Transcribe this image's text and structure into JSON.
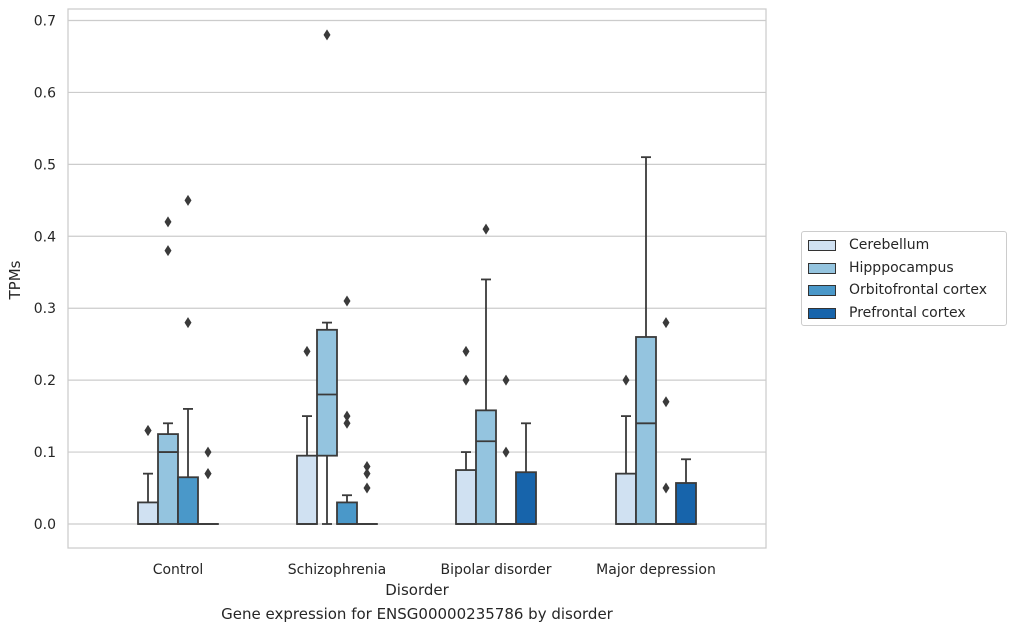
{
  "chart_data": {
    "type": "box",
    "title": "Gene expression for ENSG00000235786 by disorder",
    "xlabel": "Disorder",
    "ylabel": "TPMs",
    "ylim": [
      -0.033,
      0.715
    ],
    "yticks": [
      0.0,
      0.1,
      0.2,
      0.3,
      0.4,
      0.5,
      0.6,
      0.7
    ],
    "ytick_labels": [
      "0.0",
      "0.1",
      "0.2",
      "0.3",
      "0.4",
      "0.5",
      "0.6",
      "0.7"
    ],
    "grid": "horizontal",
    "legend_position": "right",
    "categories": [
      "Control",
      "Schizophrenia",
      "Bipolar disorder",
      "Major depression"
    ],
    "series": [
      {
        "name": "Cerebellum",
        "color": "#d0e1f2",
        "boxes": [
          {
            "whislo": 0.0,
            "q1": 0.0,
            "med": 0.0,
            "q3": 0.03,
            "whishi": 0.07,
            "fliers": [
              0.13,
              0.13
            ]
          },
          {
            "whislo": 0.0,
            "q1": 0.0,
            "med": 0.0,
            "q3": 0.095,
            "whishi": 0.15,
            "fliers": [
              0.24
            ]
          },
          {
            "whislo": 0.0,
            "q1": 0.0,
            "med": 0.0,
            "q3": 0.075,
            "whishi": 0.1,
            "fliers": [
              0.2,
              0.24
            ]
          },
          {
            "whislo": 0.0,
            "q1": 0.0,
            "med": 0.0,
            "q3": 0.07,
            "whishi": 0.15,
            "fliers": [
              0.2
            ]
          }
        ]
      },
      {
        "name": "Hipppocampus",
        "color": "#94c4df",
        "boxes": [
          {
            "whislo": 0.0,
            "q1": 0.0,
            "med": 0.1,
            "q3": 0.125,
            "whishi": 0.14,
            "fliers": [
              0.38,
              0.42
            ]
          },
          {
            "whislo": 0.0,
            "q1": 0.095,
            "med": 0.18,
            "q3": 0.27,
            "whishi": 0.28,
            "fliers": [
              0.68
            ]
          },
          {
            "whislo": 0.0,
            "q1": 0.0,
            "med": 0.115,
            "q3": 0.158,
            "whishi": 0.34,
            "fliers": [
              0.41
            ]
          },
          {
            "whislo": 0.0,
            "q1": 0.0,
            "med": 0.14,
            "q3": 0.26,
            "whishi": 0.51,
            "fliers": []
          }
        ]
      },
      {
        "name": "Orbitofrontal cortex",
        "color": "#4a98c9",
        "boxes": [
          {
            "whislo": 0.0,
            "q1": 0.0,
            "med": 0.0,
            "q3": 0.065,
            "whishi": 0.16,
            "fliers": [
              0.28,
              0.45
            ]
          },
          {
            "whislo": 0.0,
            "q1": 0.0,
            "med": 0.0,
            "q3": 0.03,
            "whishi": 0.04,
            "fliers": [
              0.14,
              0.15,
              0.31
            ]
          },
          {
            "whislo": 0.0,
            "q1": 0.0,
            "med": 0.0,
            "q3": 0.0,
            "whishi": 0.0,
            "fliers": [
              0.1,
              0.2
            ]
          },
          {
            "whislo": 0.0,
            "q1": 0.0,
            "med": 0.0,
            "q3": 0.0,
            "whishi": 0.0,
            "fliers": [
              0.05,
              0.17,
              0.28
            ]
          }
        ]
      },
      {
        "name": "Prefrontal cortex",
        "color": "#1764ab",
        "boxes": [
          {
            "whislo": 0.0,
            "q1": 0.0,
            "med": 0.0,
            "q3": 0.0,
            "whishi": 0.0,
            "fliers": [
              0.07,
              0.07,
              0.1
            ]
          },
          {
            "whislo": 0.0,
            "q1": 0.0,
            "med": 0.0,
            "q3": 0.0,
            "whishi": 0.0,
            "fliers": [
              0.05,
              0.07,
              0.08
            ]
          },
          {
            "whislo": 0.0,
            "q1": 0.0,
            "med": 0.0,
            "q3": 0.072,
            "whishi": 0.14,
            "fliers": []
          },
          {
            "whislo": 0.0,
            "q1": 0.0,
            "med": 0.0,
            "q3": 0.057,
            "whishi": 0.09,
            "fliers": []
          }
        ]
      }
    ]
  }
}
